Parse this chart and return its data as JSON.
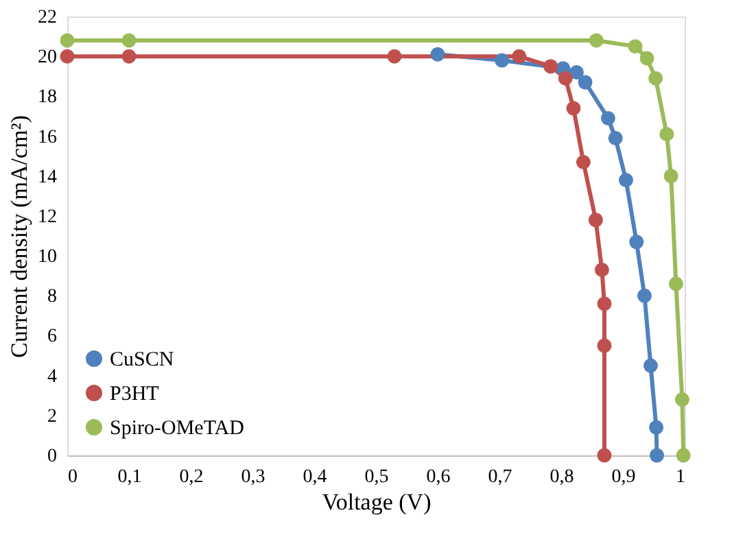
{
  "chart_data": {
    "type": "line",
    "xlabel": "Voltage (V)",
    "ylabel": "Current density (mA/cm²)",
    "xlim": [
      0,
      1
    ],
    "xticks": [
      0,
      {
        "value": 0.1,
        "label": "0,1"
      },
      {
        "value": 0.2,
        "label": "0,2"
      },
      {
        "value": 0.3,
        "label": "0,3"
      },
      {
        "value": 0.4,
        "label": "0,4"
      },
      {
        "value": 0.5,
        "label": "0,5"
      },
      {
        "value": 0.6,
        "label": "0,6"
      },
      {
        "value": 0.7,
        "label": "0,7"
      },
      {
        "value": 0.8,
        "label": "0,8"
      },
      {
        "value": 0.9,
        "label": "0,9"
      },
      1
    ],
    "ylim": [
      0,
      22
    ],
    "yticks": [
      0,
      2,
      4,
      6,
      8,
      10,
      12,
      14,
      16,
      18,
      20,
      22
    ],
    "grid": false,
    "legend": "bottom left",
    "marker": "circle",
    "line_style": "solid",
    "series": [
      {
        "name": "CuSCN",
        "color": "#4f81bd",
        "x": [
          0.6,
          0.704,
          0.803,
          0.825,
          0.839,
          0.876,
          0.888,
          0.905,
          0.922,
          0.935,
          0.945,
          0.954,
          0.955
        ],
        "values": [
          20.1,
          19.8,
          19.4,
          19.2,
          18.7,
          16.9,
          15.9,
          13.8,
          10.7,
          8.0,
          4.5,
          1.4,
          0
        ]
      },
      {
        "name": "P3HT",
        "color": "#c0504d",
        "x": [
          0,
          0.1,
          0.53,
          0.732,
          0.783,
          0.807,
          0.82,
          0.836,
          0.856,
          0.866,
          0.87,
          0.87,
          0.87
        ],
        "values": [
          20.0,
          20.0,
          20.0,
          20.0,
          19.5,
          18.9,
          17.4,
          14.7,
          11.8,
          9.3,
          7.6,
          5.5,
          0
        ]
      },
      {
        "name": "Spiro-OMeTAD",
        "color": "#9bbb59",
        "x": [
          0,
          0.1,
          0.857,
          0.92,
          0.939,
          0.953,
          0.971,
          0.978,
          0.986,
          0.996,
          0.998
        ],
        "values": [
          20.8,
          20.8,
          20.8,
          20.5,
          19.9,
          18.9,
          16.1,
          14.0,
          8.6,
          2.8,
          0
        ]
      }
    ]
  }
}
